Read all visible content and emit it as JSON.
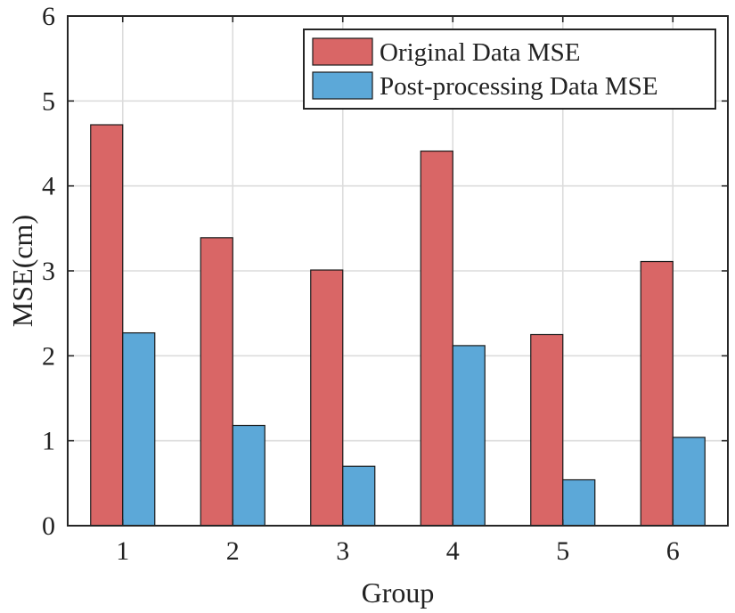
{
  "chart_data": {
    "type": "bar",
    "title": "",
    "xlabel": "Group",
    "ylabel": "MSE(cm)",
    "categories": [
      "1",
      "2",
      "3",
      "4",
      "5",
      "6"
    ],
    "series": [
      {
        "name": "Original Data MSE",
        "color": "#d96666",
        "values": [
          4.72,
          3.39,
          3.01,
          4.41,
          2.25,
          3.11
        ]
      },
      {
        "name": "Post-processing Data MSE",
        "color": "#5ca8d8",
        "values": [
          2.27,
          1.18,
          0.7,
          2.12,
          0.54,
          1.04
        ]
      }
    ],
    "ylim": [
      0,
      6
    ],
    "yticks": [
      "0",
      "1",
      "2",
      "3",
      "4",
      "5",
      "6"
    ],
    "grid": true,
    "legend_position": "top-right"
  }
}
